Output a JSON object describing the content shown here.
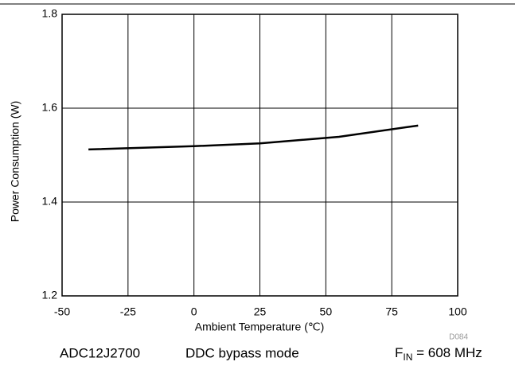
{
  "chart_data": {
    "type": "line",
    "x_label": "Ambient Temperature (℃)",
    "y_label": "Power Consumption (W)",
    "x": [
      -40,
      0,
      25,
      55,
      85
    ],
    "series": [
      {
        "color": "#000000",
        "values": [
          1.512,
          1.519,
          1.525,
          1.539,
          1.563
        ]
      }
    ],
    "xlim": [
      -50,
      100
    ],
    "xticks": [
      -50,
      -25,
      0,
      25,
      50,
      75,
      100
    ],
    "ylim": [
      1.2,
      1.8
    ],
    "yticks": [
      1.2,
      1.4,
      1.6,
      1.8
    ],
    "grid": true,
    "figure_id": "D084",
    "footer": {
      "device": "ADC12J2700",
      "mode": "DDC bypass mode",
      "freq_symbol": "F",
      "freq_subscript": "IN",
      "freq_value": " = 608 MHz"
    }
  }
}
